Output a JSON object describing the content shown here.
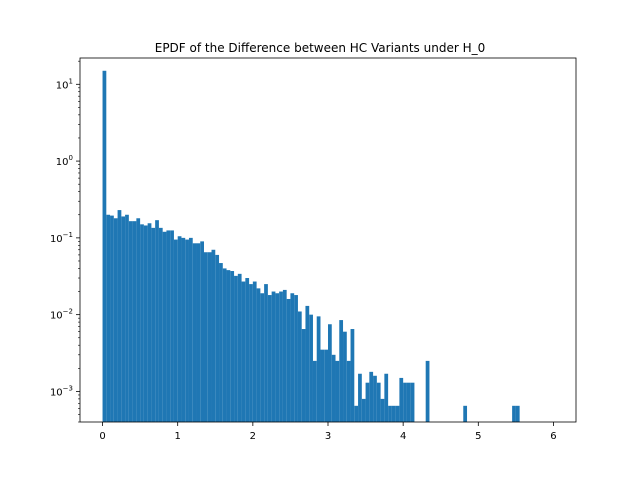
{
  "chart_data": {
    "type": "bar",
    "title": "EPDF of the Difference between HC Variants under H_0",
    "xlabel": "",
    "ylabel": "",
    "yscale": "log",
    "xlim": [
      -0.3,
      6.3
    ],
    "ylim": [
      0.0004,
      22
    ],
    "grid": false,
    "bar_color": "#1f77b4",
    "xticks": [
      {
        "value": 0,
        "label": "0"
      },
      {
        "value": 1,
        "label": "1"
      },
      {
        "value": 2,
        "label": "2"
      },
      {
        "value": 3,
        "label": "3"
      },
      {
        "value": 4,
        "label": "4"
      },
      {
        "value": 5,
        "label": "5"
      },
      {
        "value": 6,
        "label": "6"
      }
    ],
    "yticks": [
      {
        "value": 0.001,
        "base": "10",
        "exp": "−3"
      },
      {
        "value": 0.01,
        "base": "10",
        "exp": "−2"
      },
      {
        "value": 0.1,
        "base": "10",
        "exp": "−1"
      },
      {
        "value": 1,
        "base": "10",
        "exp": "0"
      },
      {
        "value": 10,
        "base": "10",
        "exp": "1"
      }
    ],
    "bin_start": 0,
    "bin_width": 0.05,
    "values": [
      15,
      0.2,
      0.195,
      0.18,
      0.23,
      0.19,
      0.2,
      0.165,
      0.165,
      0.18,
      0.15,
      0.145,
      0.155,
      0.135,
      0.17,
      0.135,
      0.12,
      0.125,
      0.125,
      0.095,
      0.105,
      0.1,
      0.095,
      0.1,
      0.085,
      0.085,
      0.09,
      0.065,
      0.065,
      0.07,
      0.06,
      0.047,
      0.04,
      0.038,
      0.037,
      0.032,
      0.034,
      0.027,
      0.03,
      0.025,
      0.027,
      0.022,
      0.019,
      0.025,
      0.018,
      0.02,
      0.019,
      0.02,
      0.021,
      0.016,
      0.019,
      0.018,
      0.011,
      0.0065,
      0.013,
      0.01,
      0.0025,
      0.0095,
      0.0035,
      0.0035,
      0.0075,
      0.003,
      0.0025,
      0.0085,
      0.006,
      0.0025,
      0.0065,
      0.00065,
      0.0017,
      0.0008,
      0.0013,
      0.0018,
      0.0016,
      0.0013,
      0.0008,
      0.0017,
      0.00065,
      0.00065,
      0.00065,
      0.0015,
      0.0013,
      0.0013,
      0.0013,
      0,
      0,
      0,
      0.0025,
      0,
      0,
      0,
      0,
      0,
      0,
      0,
      0,
      0,
      0.00065,
      0,
      0,
      0,
      0,
      0,
      0,
      0,
      0,
      0,
      0,
      0,
      0,
      0.00065,
      0.00065
    ]
  }
}
